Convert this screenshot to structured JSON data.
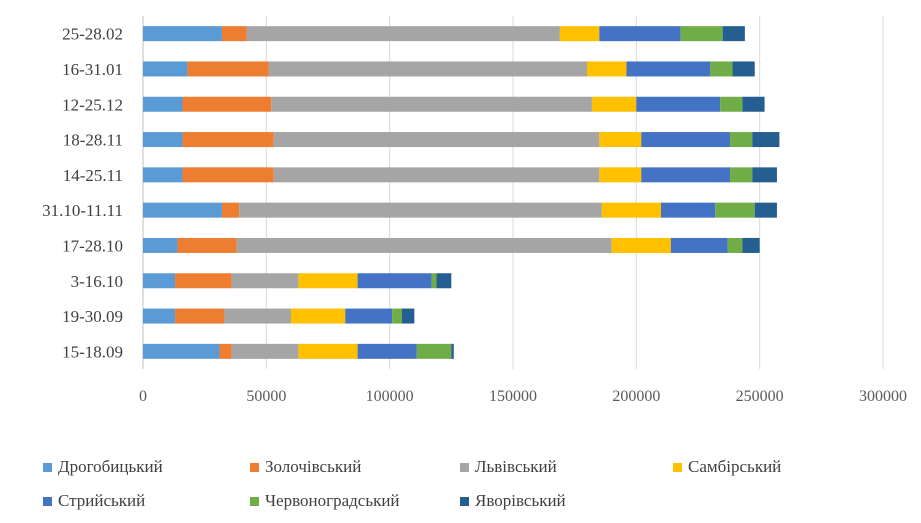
{
  "chart_data": {
    "type": "bar",
    "orientation": "horizontal",
    "stacked": true,
    "categories": [
      "25-28.02",
      "16-31.01",
      "12-25.12",
      "18-28.11",
      "14-25.11",
      "31.10-11.11",
      "17-28.10",
      "3-16.10",
      "19-30.09",
      "15-18.09"
    ],
    "series": [
      {
        "name": "Дрогобицький",
        "color": "#5b9bd5",
        "values": [
          32000,
          18000,
          16000,
          16000,
          16000,
          32000,
          14000,
          13000,
          13000,
          31000
        ]
      },
      {
        "name": "Золочівський",
        "color": "#ed7d31",
        "values": [
          10000,
          33000,
          36000,
          37000,
          37000,
          7000,
          24000,
          23000,
          20000,
          5000
        ]
      },
      {
        "name": "Львівський",
        "color": "#a5a5a5",
        "values": [
          127000,
          129000,
          130000,
          132000,
          132000,
          147000,
          152000,
          27000,
          27000,
          27000
        ]
      },
      {
        "name": "Самбірський",
        "color": "#ffc000",
        "values": [
          16000,
          16000,
          18000,
          17000,
          17000,
          24000,
          24000,
          24000,
          22000,
          24000
        ]
      },
      {
        "name": "Стрийський",
        "color": "#4472c4",
        "values": [
          33000,
          34000,
          34000,
          36000,
          36000,
          22000,
          23000,
          30000,
          19000,
          24000
        ]
      },
      {
        "name": "Червоноградський",
        "color": "#70ad47",
        "values": [
          17000,
          9000,
          9000,
          9000,
          9000,
          16000,
          6000,
          2000,
          4000,
          14000
        ]
      },
      {
        "name": "Яворівський",
        "color": "#255e91",
        "values": [
          9000,
          9000,
          9000,
          11000,
          10000,
          9000,
          7000,
          6000,
          5000,
          1000
        ]
      }
    ],
    "xlim": [
      0,
      300000
    ],
    "xticks": [
      "0",
      "50000",
      "100000",
      "150000",
      "200000",
      "250000",
      "300000"
    ],
    "grid": true,
    "legend_position": "bottom"
  }
}
